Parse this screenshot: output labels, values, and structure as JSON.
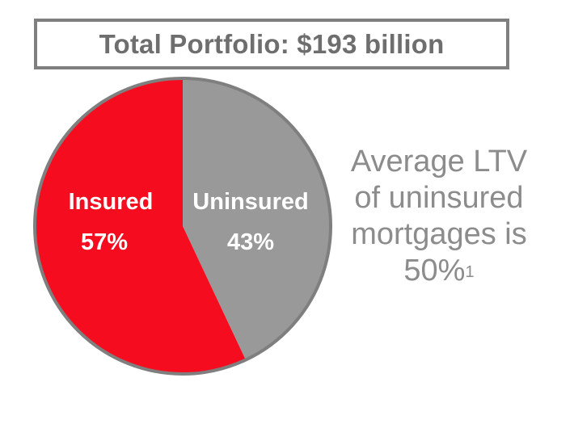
{
  "chart_data": {
    "type": "pie",
    "title": "Total Portfolio: $193 billion",
    "slices": [
      {
        "label": "Uninsured",
        "value": 43,
        "value_label": "43%",
        "color": "#999999"
      },
      {
        "label": "Insured",
        "value": 57,
        "value_label": "57%",
        "color": "#f50c1e"
      }
    ],
    "border_color": "#7f7f7f",
    "annotation": {
      "lines": [
        "Average LTV",
        "of uninsured",
        "mortgages is",
        "50%"
      ],
      "footnote": "1"
    }
  }
}
